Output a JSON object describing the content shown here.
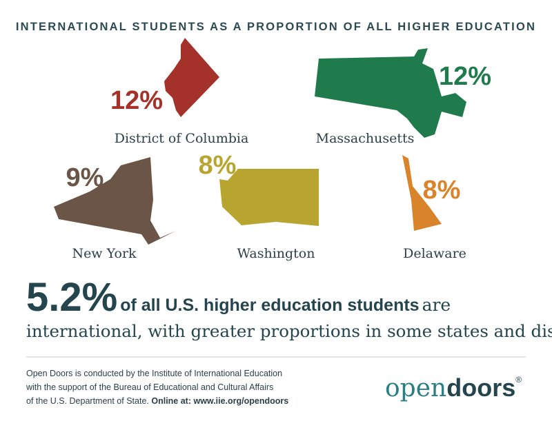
{
  "title": "INTERNATIONAL STUDENTS AS A PROPORTION OF ALL HIGHER EDUCATION",
  "states": [
    {
      "name": "District of Columbia",
      "share": "12%"
    },
    {
      "name": "Massachusetts",
      "share": "12%"
    },
    {
      "name": "New York",
      "share": "9%"
    },
    {
      "name": "Washington",
      "share": "8%"
    },
    {
      "name": "Delaware",
      "share": "8%"
    }
  ],
  "headline": {
    "figure": "5.2%",
    "bold": "of all U.S. higher education students",
    "rest": "are",
    "line2": "international, with greater proportions in some states and districts."
  },
  "footer": {
    "line1": "Open Doors is conducted by the Institute of International Education",
    "line2": "with the support of the Bureau of Educational and Cultural Affairs",
    "line3": "of the U.S. Department of State.",
    "link": "Online at: www.iie.org/opendoors"
  },
  "logo": {
    "open": "open",
    "doors": "doors",
    "mark": "®"
  }
}
